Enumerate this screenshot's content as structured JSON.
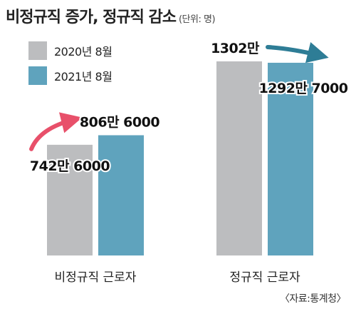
{
  "header": {
    "title": "비정규직 증가, 정규직 감소",
    "unit": "(단위: 명)"
  },
  "legend": [
    {
      "label": "2020년 8월",
      "color": "#bcbdbf"
    },
    {
      "label": "2021년 8월",
      "color": "#5fa3bd"
    }
  ],
  "source": "〈자료:통계청〉",
  "chart_data": {
    "type": "bar",
    "categories": [
      "비정규직 근로자",
      "정규직 근로자"
    ],
    "series": [
      {
        "name": "2020년 8월",
        "values": [
          7426000,
          13020000
        ]
      },
      {
        "name": "2021년 8월",
        "values": [
          8066000,
          12927000
        ]
      }
    ],
    "data_labels": [
      [
        "742만 6000",
        "1302만"
      ],
      [
        "806만 6000",
        "1292만 7000"
      ]
    ],
    "ylim": [
      0,
      13020000
    ],
    "grid": false,
    "legend_position": "top-left",
    "arrow_colors": [
      "#e8506a",
      "#2e7d96"
    ]
  }
}
